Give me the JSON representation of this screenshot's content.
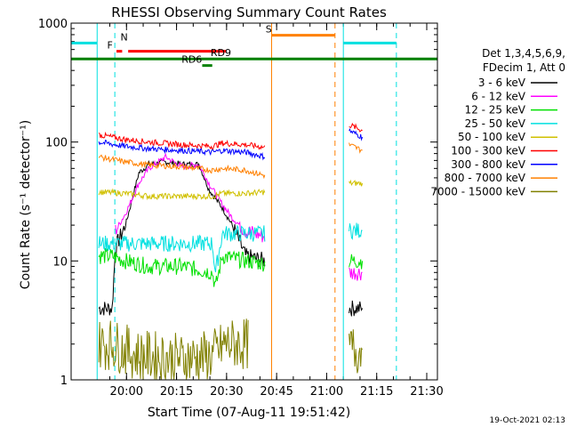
{
  "chart_data": {
    "type": "line",
    "title": "RHESSI Observing Summary Count Rates",
    "xlabel": "Start Time (07-Aug-11 19:51:42)",
    "ylabel": "Count Rate (s⁻¹ detector⁻¹)",
    "yscale": "log",
    "ylim": [
      1,
      1000
    ],
    "xlim_minutes": [
      -8.3,
      101.5
    ],
    "x_ticks": [
      "20:00",
      "20:15",
      "20:30",
      "20:45",
      "21:00",
      "21:15",
      "21:30"
    ],
    "y_ticks": [
      "1",
      "10",
      "100",
      "1000"
    ],
    "legend_header": [
      "Det 1,3,4,5,6,9,",
      "FDecim 1, Att 0"
    ],
    "footer_date": "19-Oct-2021 02:13",
    "series": [
      {
        "name": "3 - 6 keV",
        "color": "#000000",
        "points": [
          [
            0,
            4
          ],
          [
            4,
            4
          ],
          [
            5,
            13
          ],
          [
            8,
            20
          ],
          [
            12,
            55
          ],
          [
            15,
            65
          ],
          [
            20,
            68
          ],
          [
            25,
            65
          ],
          [
            30,
            65
          ],
          [
            33,
            40
          ],
          [
            37,
            28
          ],
          [
            40,
            20
          ],
          [
            44,
            11
          ],
          [
            50,
            10
          ],
          [
            75,
            4
          ],
          [
            79,
            4
          ]
        ]
      },
      {
        "name": "6 - 12 keV",
        "color": "#ff00ff",
        "points": [
          [
            5,
            18
          ],
          [
            8,
            25
          ],
          [
            12,
            45
          ],
          [
            15,
            60
          ],
          [
            20,
            75
          ],
          [
            25,
            62
          ],
          [
            30,
            65
          ],
          [
            33,
            45
          ],
          [
            37,
            30
          ],
          [
            40,
            23
          ],
          [
            44,
            18
          ],
          [
            50,
            16
          ],
          [
            75,
            8
          ],
          [
            79,
            8
          ]
        ]
      },
      {
        "name": "12 - 25 keV",
        "color": "#00e000",
        "points": [
          [
            0,
            11
          ],
          [
            4,
            11
          ],
          [
            8,
            10
          ],
          [
            15,
            9
          ],
          [
            25,
            9
          ],
          [
            34,
            8
          ],
          [
            35,
            6
          ],
          [
            37,
            11
          ],
          [
            44,
            10
          ],
          [
            50,
            9.5
          ],
          [
            75,
            10
          ],
          [
            79,
            10
          ]
        ]
      },
      {
        "name": "25 - 50 keV",
        "color": "#00e0e0",
        "points": [
          [
            0,
            14
          ],
          [
            4,
            14
          ],
          [
            8,
            14
          ],
          [
            15,
            14
          ],
          [
            25,
            14
          ],
          [
            34,
            14
          ],
          [
            35,
            8
          ],
          [
            37,
            17
          ],
          [
            44,
            17
          ],
          [
            50,
            17
          ],
          [
            75,
            18
          ],
          [
            79,
            18
          ]
        ]
      },
      {
        "name": "50 - 100 keV",
        "color": "#d0c000",
        "points": [
          [
            0,
            38
          ],
          [
            8,
            37
          ],
          [
            15,
            35
          ],
          [
            25,
            35
          ],
          [
            34,
            35
          ],
          [
            37,
            37
          ],
          [
            44,
            37
          ],
          [
            50,
            38
          ],
          [
            75,
            45
          ],
          [
            79,
            45
          ]
        ]
      },
      {
        "name": "100 - 300 keV",
        "color": "#ff0000",
        "points": [
          [
            0,
            115
          ],
          [
            8,
            105
          ],
          [
            15,
            100
          ],
          [
            25,
            95
          ],
          [
            34,
            92
          ],
          [
            37,
            98
          ],
          [
            44,
            95
          ],
          [
            50,
            90
          ],
          [
            75,
            140
          ],
          [
            79,
            125
          ]
        ]
      },
      {
        "name": "300 - 800 keV",
        "color": "#0000ff",
        "points": [
          [
            0,
            100
          ],
          [
            8,
            92
          ],
          [
            15,
            88
          ],
          [
            25,
            85
          ],
          [
            34,
            82
          ],
          [
            37,
            85
          ],
          [
            44,
            82
          ],
          [
            50,
            75
          ],
          [
            75,
            125
          ],
          [
            79,
            110
          ]
        ]
      },
      {
        "name": "800 - 7000 keV",
        "color": "#ff8000",
        "points": [
          [
            0,
            75
          ],
          [
            8,
            68
          ],
          [
            15,
            64
          ],
          [
            25,
            62
          ],
          [
            34,
            58
          ],
          [
            37,
            60
          ],
          [
            44,
            58
          ],
          [
            50,
            52
          ],
          [
            75,
            95
          ],
          [
            79,
            85
          ]
        ]
      },
      {
        "name": "7000 - 15000 keV",
        "color": "#808000",
        "points": [
          [
            0,
            2
          ],
          [
            4,
            2
          ],
          [
            12,
            1.6
          ],
          [
            25,
            1.5
          ],
          [
            34,
            1.6
          ],
          [
            38,
            2
          ],
          [
            45,
            2
          ],
          [
            50,
            1.8
          ],
          [
            75,
            1.8
          ],
          [
            79,
            1.8
          ]
        ]
      }
    ],
    "vertical_lines": [
      {
        "x": -0.5,
        "color": "#00e0e0",
        "dash": false
      },
      {
        "x": 4.8,
        "color": "#00e0e0",
        "dash": true
      },
      {
        "x": 51.8,
        "color": "#ff8000",
        "dash": false
      },
      {
        "x": 70.8,
        "color": "#ff8000",
        "dash": true
      },
      {
        "x": 73.3,
        "color": "#00e0e0",
        "dash": false
      },
      {
        "x": 89.2,
        "color": "#00e0e0",
        "dash": true
      }
    ],
    "flags": [
      {
        "label": "N",
        "color": "#00e0e0",
        "segments": [
          [
            -8.3,
            -0.5
          ],
          [
            73.3,
            89.2
          ]
        ],
        "y": 680,
        "label_x": 6.5
      },
      {
        "label": "F",
        "color": "#ff0000",
        "segments": [
          [
            5.3,
            7.0
          ],
          [
            8.8,
            38.2
          ]
        ],
        "y": 580,
        "label_x": 2.5
      },
      {
        "label": "S",
        "color": "#ff8000",
        "segments": [
          [
            51.8,
            70.8
          ]
        ],
        "y": 790,
        "label_x": 50.0
      },
      {
        "label": "RD9",
        "color": "#008000",
        "segments": [
          [
            -8.3,
            101.5
          ]
        ],
        "y": 500,
        "label_x": 33.5
      },
      {
        "label": "RD6",
        "color": "#008000",
        "segments": [
          [
            31.0,
            34.0
          ]
        ],
        "y": 440,
        "label_x": 24.8
      }
    ]
  }
}
